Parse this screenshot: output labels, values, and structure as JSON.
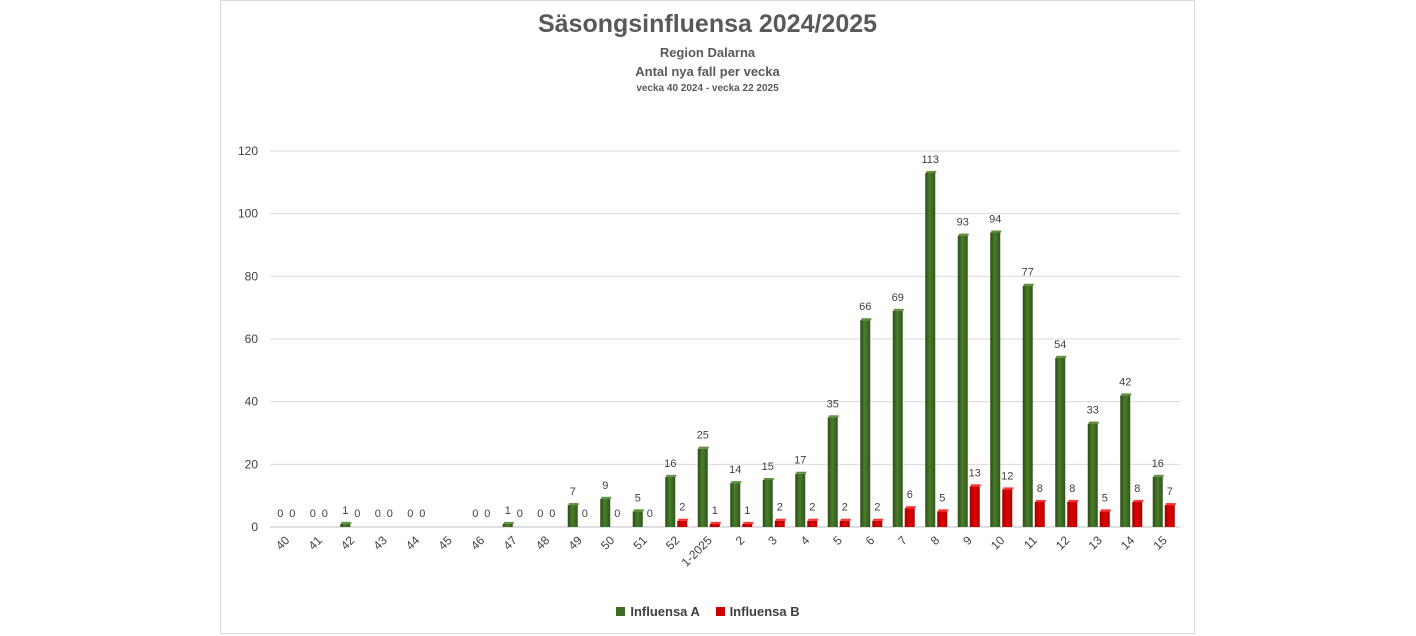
{
  "chart_data": {
    "type": "bar",
    "title": "Säsongsinfluensa 2024/2025",
    "subtitle": "Region Dalarna",
    "subtitle2": "Antal nya fall per vecka",
    "subtitle3": "vecka 40 2024 - vecka 22 2025",
    "categories": [
      "40",
      "41",
      "42",
      "43",
      "44",
      "45",
      "46",
      "47",
      "48",
      "49",
      "50",
      "51",
      "52",
      "1-2025",
      "2",
      "3",
      "4",
      "5",
      "6",
      "7",
      "8",
      "9",
      "10",
      "11",
      "12",
      "13",
      "14",
      "15"
    ],
    "series": [
      {
        "name": "Influensa A",
        "color": "#3d6b22",
        "values": [
          0,
          0,
          1,
          0,
          0,
          null,
          0,
          1,
          0,
          7,
          9,
          5,
          16,
          25,
          14,
          15,
          17,
          35,
          66,
          69,
          113,
          93,
          94,
          77,
          54,
          33,
          42,
          16
        ]
      },
      {
        "name": "Influensa B",
        "color": "#cc0000",
        "values": [
          0,
          0,
          0,
          0,
          0,
          null,
          0,
          0,
          0,
          0,
          0,
          0,
          2,
          1,
          1,
          2,
          2,
          2,
          2,
          6,
          5,
          13,
          12,
          8,
          8,
          5,
          8,
          7
        ]
      }
    ],
    "ylim": [
      0,
      120
    ],
    "yticks": [
      0,
      20,
      40,
      60,
      80,
      100,
      120
    ],
    "grid": true,
    "legend": "bottom"
  }
}
